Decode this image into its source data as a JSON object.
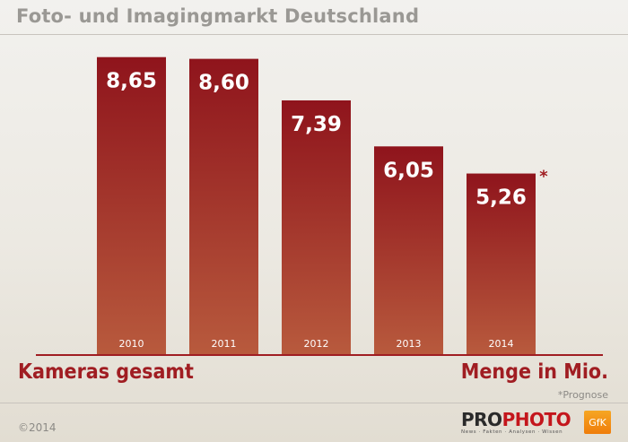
{
  "header": {
    "title": "Foto- und Imagingmarkt Deutschland"
  },
  "chart_data": {
    "type": "bar",
    "categories": [
      "2010",
      "2011",
      "2012",
      "2013",
      "2014"
    ],
    "values": [
      8.65,
      8.6,
      7.39,
      6.05,
      5.26
    ],
    "value_labels": [
      "8,65",
      "8,60",
      "7,39",
      "6,05",
      "5,26"
    ],
    "title": "Foto- und Imagingmarkt Deutschland",
    "xlabel": "Kameras gesamt",
    "ylabel": "",
    "unit": "Menge in Mio.",
    "forecast_marker": "*",
    "forecast_category": "2014",
    "footnote": "*Prognose",
    "ylim": [
      0,
      9.5
    ],
    "grid": false,
    "legend": "none",
    "colors": {
      "bar_top": "#8f141c",
      "bar_bottom": "#b85a3d",
      "axis": "#a01d22",
      "label": "#ffffff",
      "accent": "#a01d22"
    }
  },
  "footer": {
    "copyright": "©2014",
    "logo_prophoto_pro": "PRO",
    "logo_prophoto_photo": "PHOTO",
    "logo_prophoto_tagline": "News · Fakten · Analysen · Wissen",
    "logo_gfk": "GfK"
  }
}
